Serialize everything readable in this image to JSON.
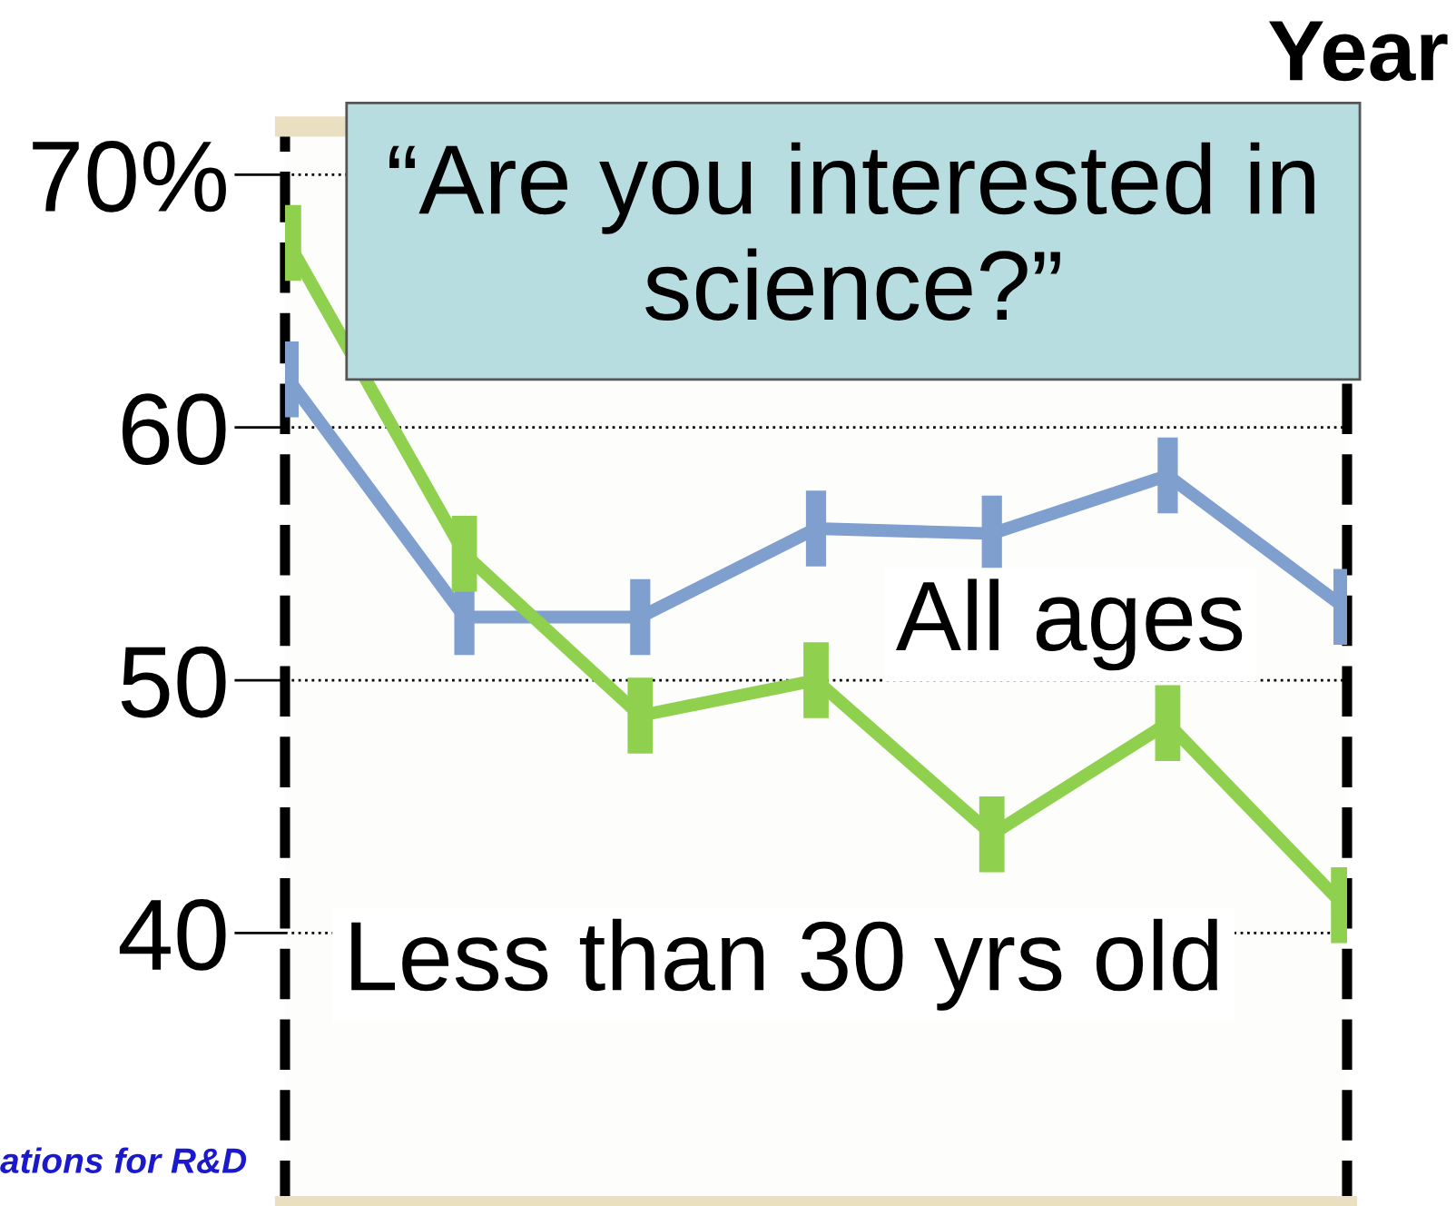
{
  "chart_data": {
    "type": "line",
    "title": "“Are you interested in science?”",
    "xlabel": "Year",
    "categories": [
      null,
      null,
      null,
      null,
      null,
      null,
      null
    ],
    "series": [
      {
        "name": "All ages",
        "color": "#7f9fce",
        "marker": "none",
        "values": [
          61.9,
          52.5,
          52.5,
          56.0,
          55.8,
          58.1,
          52.9
        ],
        "errors": [
          1.5,
          1.5,
          1.5,
          1.5,
          1.5,
          1.5,
          1.5
        ]
      },
      {
        "name": "Less than 30 yrs old",
        "color": "#8fd14f",
        "marker": "none",
        "values": [
          67.3,
          55.0,
          48.6,
          50.0,
          43.9,
          48.3,
          41.1
        ],
        "errors": [
          1.5,
          1.5,
          1.5,
          1.5,
          1.5,
          1.5,
          1.5
        ]
      }
    ],
    "ylim": [
      29.2,
      71.9
    ],
    "yticks": [
      {
        "value": 70,
        "label": "70%"
      },
      60,
      50,
      40
    ],
    "grid": "y",
    "annotations": [
      "ations for R&D"
    ]
  }
}
